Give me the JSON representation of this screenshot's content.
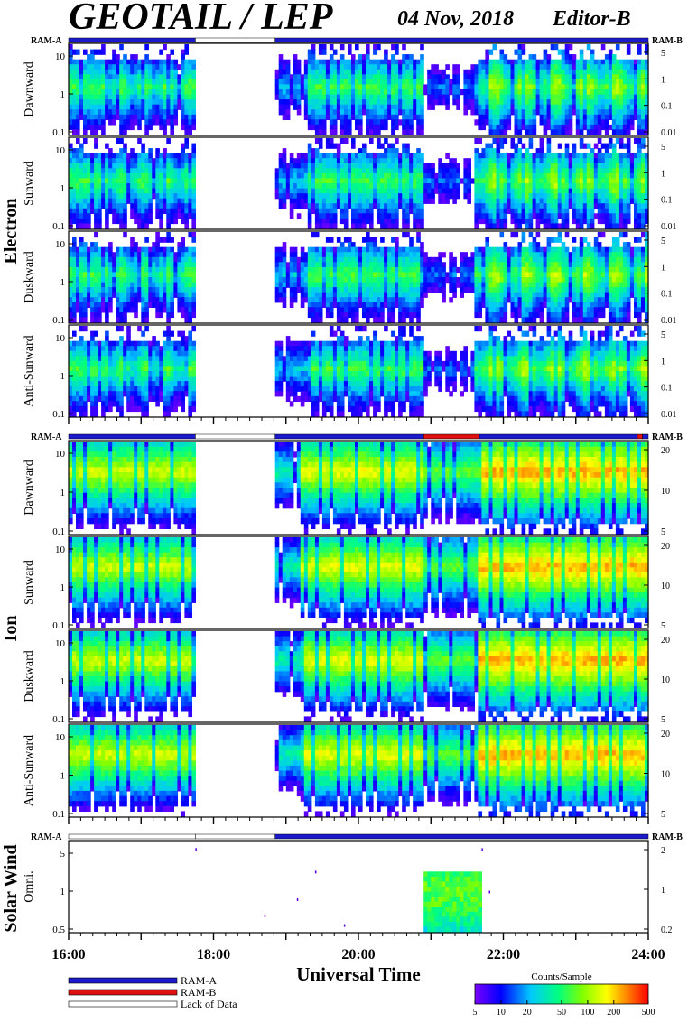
{
  "header": {
    "title": "GEOTAIL / LEP",
    "date": "04 Nov, 2018",
    "editor": "Editor-B"
  },
  "ram_labels": {
    "left": "RAM-A",
    "right": "RAM-B"
  },
  "groups": [
    {
      "name": "Electron",
      "panels": [
        {
          "label": "Dawnward",
          "yticks": [
            "10",
            "1",
            "0.1"
          ],
          "rticks": [
            "5",
            "1",
            "0.1",
            "0.01"
          ]
        },
        {
          "label": "Sunward",
          "yticks": [
            "10",
            "1",
            "0.1"
          ],
          "rticks": [
            "5",
            "1",
            "0.1",
            "0.01"
          ]
        },
        {
          "label": "Duskward",
          "yticks": [
            "10",
            "1",
            "0.1"
          ],
          "rticks": [
            "5",
            "1",
            "0.1",
            "0.01"
          ]
        },
        {
          "label": "Anti-Sunward",
          "yticks": [
            "10",
            "1",
            "0.1"
          ],
          "rticks": [
            "5",
            "1",
            "0.1",
            "0.01"
          ]
        }
      ]
    },
    {
      "name": "Ion",
      "panels": [
        {
          "label": "Dawnward",
          "yticks": [
            "10",
            "1",
            "0.1"
          ],
          "rticks": [
            "20",
            "10",
            "5"
          ]
        },
        {
          "label": "Sunward",
          "yticks": [
            "10",
            "1",
            "0.1"
          ],
          "rticks": [
            "20",
            "10",
            "5"
          ]
        },
        {
          "label": "Duskward",
          "yticks": [
            "10",
            "1",
            "0.1"
          ],
          "rticks": [
            "20",
            "10",
            "5"
          ]
        },
        {
          "label": "Anti-Sunward",
          "yticks": [
            "10",
            "1",
            "0.1"
          ],
          "rticks": [
            "20",
            "10",
            "5"
          ]
        }
      ]
    },
    {
      "name": "Solar Wind",
      "panels": [
        {
          "label": "Omni.",
          "yticks": [
            "5",
            "1",
            "0.5"
          ],
          "rticks": [
            "2",
            "1",
            "0.2"
          ]
        }
      ]
    }
  ],
  "chart_data": {
    "type": "heatmap",
    "x_axis": {
      "label": "Universal Time",
      "ticks": [
        "16:00",
        "18:00",
        "20:00",
        "22:00",
        "24:00"
      ],
      "range_hours": [
        16,
        24
      ]
    },
    "ram_segments": [
      {
        "group": "Electron",
        "segments": [
          {
            "from": 16.0,
            "to": 17.75,
            "mode": "RAM-A"
          },
          {
            "from": 17.75,
            "to": 18.85,
            "mode": "Lack of Data"
          },
          {
            "from": 18.85,
            "to": 24.0,
            "mode": "RAM-A"
          }
        ]
      },
      {
        "group": "Ion",
        "segments": [
          {
            "from": 16.0,
            "to": 17.75,
            "mode": "RAM-A"
          },
          {
            "from": 17.75,
            "to": 18.85,
            "mode": "Lack of Data"
          },
          {
            "from": 18.85,
            "to": 20.9,
            "mode": "RAM-A"
          },
          {
            "from": 20.9,
            "to": 21.67,
            "mode": "RAM-B"
          },
          {
            "from": 21.67,
            "to": 23.85,
            "mode": "RAM-A"
          },
          {
            "from": 23.85,
            "to": 23.92,
            "mode": "RAM-B"
          },
          {
            "from": 23.92,
            "to": 24.0,
            "mode": "RAM-A"
          }
        ]
      },
      {
        "group": "Solar Wind",
        "segments": [
          {
            "from": 16.0,
            "to": 17.75,
            "mode": "Lack of Data"
          },
          {
            "from": 17.75,
            "to": 18.85,
            "mode": "Lack of Data"
          },
          {
            "from": 18.85,
            "to": 24.0,
            "mode": "RAM-A"
          }
        ]
      }
    ],
    "data_gaps": [
      {
        "from": 17.75,
        "to": 18.85
      }
    ],
    "colorbar": {
      "title": "Counts/Sample",
      "ticks": [
        "5",
        "10",
        "20",
        "50",
        "100",
        "200",
        "500"
      ],
      "scale": "log",
      "range": [
        5,
        500
      ]
    }
  },
  "legend": {
    "items": [
      {
        "label": "RAM-A",
        "color": "#1a1acc"
      },
      {
        "label": "RAM-B",
        "color": "#dd1111"
      },
      {
        "label": "Lack of Data",
        "color": "#ffffff"
      }
    ]
  }
}
